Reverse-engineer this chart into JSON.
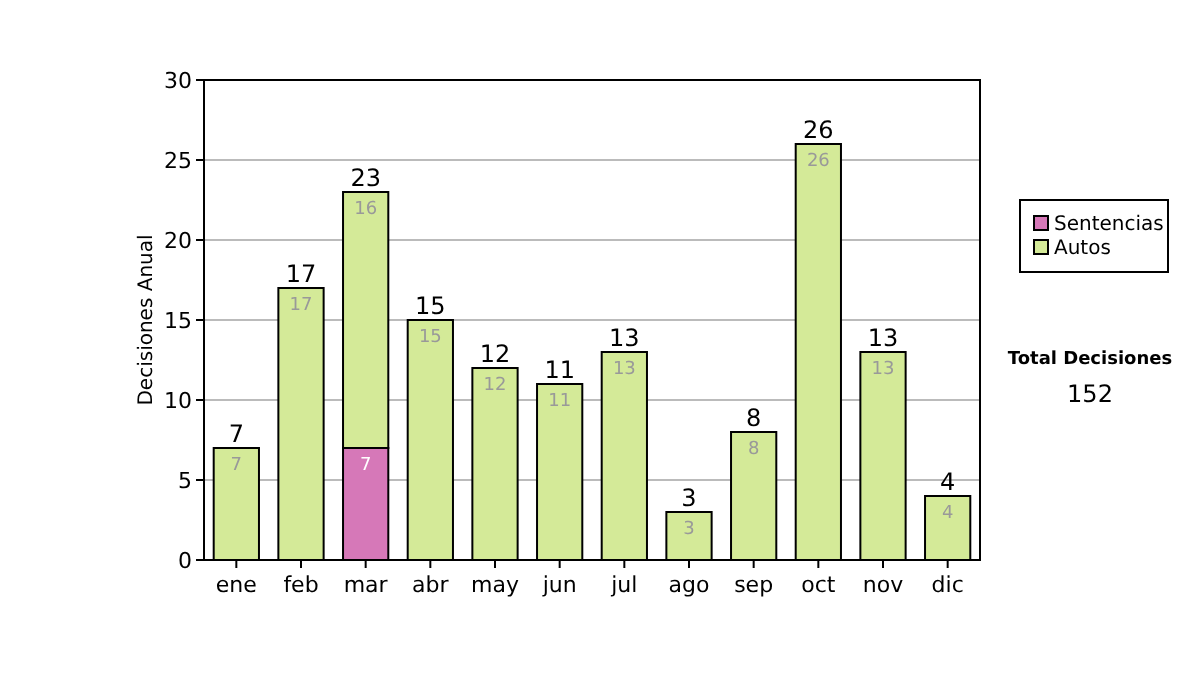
{
  "chart_data": {
    "type": "bar",
    "stacked": true,
    "ylabel": "Decisiones Anual",
    "categories": [
      "ene",
      "feb",
      "mar",
      "abr",
      "may",
      "jun",
      "jul",
      "ago",
      "sep",
      "oct",
      "nov",
      "dic"
    ],
    "series": [
      {
        "name": "Sentencias",
        "color": "#d678b8",
        "values": [
          0,
          0,
          7,
          0,
          0,
          0,
          0,
          0,
          0,
          0,
          0,
          0
        ],
        "value_labels": [
          null,
          null,
          "7",
          null,
          null,
          null,
          null,
          null,
          null,
          null,
          null,
          null
        ]
      },
      {
        "name": "Autos",
        "color": "#d4ea98",
        "values": [
          7,
          17,
          16,
          15,
          12,
          11,
          13,
          3,
          8,
          26,
          13,
          4
        ],
        "value_labels": [
          "7",
          "17",
          "16",
          "15",
          "12",
          "11",
          "13",
          "3",
          "8",
          "26",
          "13",
          "4"
        ]
      }
    ],
    "totals": [
      "7",
      "17",
      "23",
      "15",
      "12",
      "11",
      "13",
      "3",
      "8",
      "26",
      "13",
      "4"
    ],
    "ylim": [
      0,
      30
    ],
    "yticks": [
      0,
      5,
      10,
      15,
      20,
      25,
      30
    ],
    "grid": "y",
    "legend": "right",
    "annotations": [
      "Total Decisiones",
      "152"
    ]
  }
}
